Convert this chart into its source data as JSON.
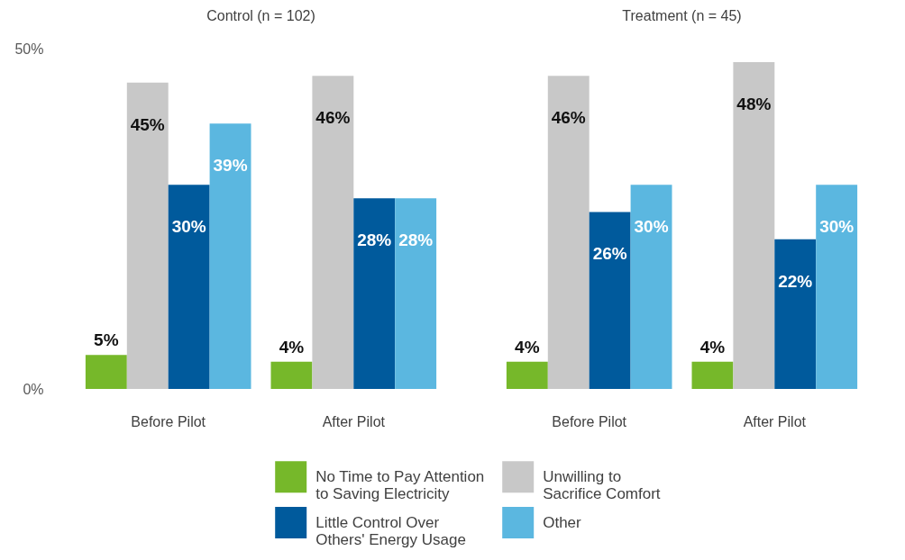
{
  "chart_data": [
    {
      "type": "bar",
      "title": "Control (n = 102)",
      "categories": [
        "Before Pilot",
        "After Pilot"
      ],
      "series": [
        {
          "name": "No Time to Pay Attention\nto Saving Electricity",
          "color": "#76b82a",
          "values": [
            5,
            4
          ],
          "value_labels": [
            "5%",
            "4%"
          ]
        },
        {
          "name": "Unwilling to\nSacrifice Comfort",
          "color": "#c8c8c8",
          "values": [
            45,
            46
          ],
          "value_labels": [
            "45%",
            "46%"
          ]
        },
        {
          "name": "Little Control Over\nOthers' Energy Usage",
          "color": "#005a9c",
          "values": [
            30,
            28
          ],
          "value_labels": [
            "30%",
            "28%"
          ]
        },
        {
          "name": "Other",
          "color": "#5bb7e0",
          "values": [
            39,
            28
          ],
          "value_labels": [
            "39%",
            "28%"
          ]
        }
      ],
      "ylim": [
        0,
        50
      ],
      "yticks": [
        {
          "value": 0,
          "label": "0%"
        },
        {
          "value": 50,
          "label": "50%"
        }
      ],
      "legend": "bottom"
    },
    {
      "type": "bar",
      "title": "Treatment (n = 45)",
      "categories": [
        "Before Pilot",
        "After Pilot"
      ],
      "series": [
        {
          "name": "No Time to Pay Attention\nto Saving Electricity",
          "color": "#76b82a",
          "values": [
            4,
            4
          ],
          "value_labels": [
            "4%",
            "4%"
          ]
        },
        {
          "name": "Unwilling to\nSacrifice Comfort",
          "color": "#c8c8c8",
          "values": [
            46,
            48
          ],
          "value_labels": [
            "46%",
            "48%"
          ]
        },
        {
          "name": "Little Control Over\nOthers' Energy Usage",
          "color": "#005a9c",
          "values": [
            26,
            22
          ],
          "value_labels": [
            "26%",
            "22%"
          ]
        },
        {
          "name": "Other",
          "color": "#5bb7e0",
          "values": [
            30,
            30
          ],
          "value_labels": [
            "30%",
            "30%"
          ]
        }
      ],
      "ylim": [
        0,
        50
      ],
      "tick_labels": "x",
      "legend": "bottom"
    }
  ]
}
